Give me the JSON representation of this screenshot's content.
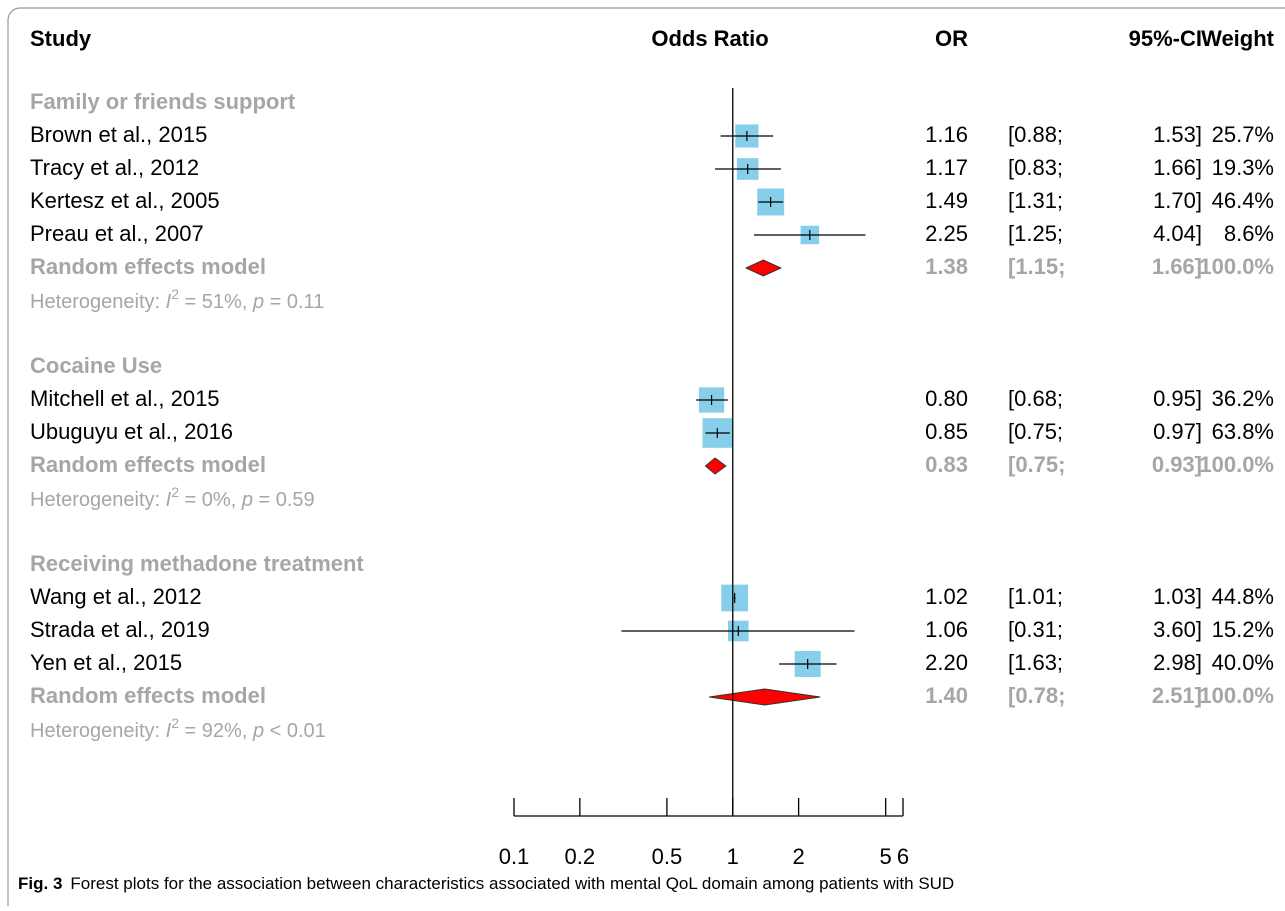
{
  "chart_data": {
    "type": "forest",
    "columns": [
      "Study",
      "Odds Ratio",
      "OR",
      "95%-CI",
      "Weight"
    ],
    "xlim": [
      0.1,
      6
    ],
    "xticks": [
      0.1,
      0.2,
      0.5,
      1,
      2,
      5,
      6
    ],
    "x_log": true,
    "reference_line": 1,
    "box_color": "#87ceeb",
    "diamond_color": "#ff0000",
    "groups": [
      {
        "name": "Family or friends support",
        "studies": [
          {
            "label": "Brown et al., 2015",
            "or": 1.16,
            "lower": 0.88,
            "upper": 1.53,
            "weight": 25.7,
            "labels": {
              "or": "1.16",
              "lower": "[0.88;",
              "upper": "1.53]",
              "weight": "25.7%"
            }
          },
          {
            "label": "Tracy et al., 2012",
            "or": 1.17,
            "lower": 0.83,
            "upper": 1.66,
            "weight": 19.3,
            "labels": {
              "or": "1.17",
              "lower": "[0.83;",
              "upper": "1.66]",
              "weight": "19.3%"
            }
          },
          {
            "label": "Kertesz et al., 2005",
            "or": 1.49,
            "lower": 1.31,
            "upper": 1.7,
            "weight": 46.4,
            "labels": {
              "or": "1.49",
              "lower": "[1.31;",
              "upper": "1.70]",
              "weight": "46.4%"
            }
          },
          {
            "label": "Preau et al., 2007",
            "or": 2.25,
            "lower": 1.25,
            "upper": 4.04,
            "weight": 8.6,
            "labels": {
              "or": "2.25",
              "lower": "[1.25;",
              "upper": "4.04]",
              "weight": "8.6%"
            }
          }
        ],
        "summary": {
          "label": "Random effects model",
          "or": 1.38,
          "lower": 1.15,
          "upper": 1.66,
          "weight": 100,
          "labels": {
            "or": "1.38",
            "lower": "[1.15;",
            "upper": "1.66]",
            "weight": "100.0%"
          }
        },
        "heterogeneity": [
          "Heterogeneity: ",
          "I",
          "2",
          " = 51%, ",
          "p",
          " = 0.11"
        ]
      },
      {
        "name": "Cocaine Use",
        "studies": [
          {
            "label": "Mitchell et al., 2015",
            "or": 0.8,
            "lower": 0.68,
            "upper": 0.95,
            "weight": 36.2,
            "labels": {
              "or": "0.80",
              "lower": "[0.68;",
              "upper": "0.95]",
              "weight": "36.2%"
            }
          },
          {
            "label": "Ubuguyu et al., 2016",
            "or": 0.85,
            "lower": 0.75,
            "upper": 0.97,
            "weight": 63.8,
            "labels": {
              "or": "0.85",
              "lower": "[0.75;",
              "upper": "0.97]",
              "weight": "63.8%"
            }
          }
        ],
        "summary": {
          "label": "Random effects model",
          "or": 0.83,
          "lower": 0.75,
          "upper": 0.93,
          "weight": 100,
          "labels": {
            "or": "0.83",
            "lower": "[0.75;",
            "upper": "0.93]",
            "weight": "100.0%"
          }
        },
        "heterogeneity": [
          "Heterogeneity: ",
          "I",
          "2",
          " = 0%, ",
          "p",
          " = 0.59"
        ]
      },
      {
        "name": "Receiving methadone treatment",
        "studies": [
          {
            "label": "Wang et al., 2012",
            "or": 1.02,
            "lower": 1.01,
            "upper": 1.03,
            "weight": 44.8,
            "labels": {
              "or": "1.02",
              "lower": "[1.01;",
              "upper": "1.03]",
              "weight": "44.8%"
            }
          },
          {
            "label": "Strada et al., 2019",
            "or": 1.06,
            "lower": 0.31,
            "upper": 3.6,
            "weight": 15.2,
            "labels": {
              "or": "1.06",
              "lower": "[0.31;",
              "upper": "3.60]",
              "weight": "15.2%"
            }
          },
          {
            "label": "Yen et al., 2015",
            "or": 2.2,
            "lower": 1.63,
            "upper": 2.98,
            "weight": 40,
            "labels": {
              "or": "2.20",
              "lower": "[1.63;",
              "upper": "2.98]",
              "weight": "40.0%"
            }
          }
        ],
        "summary": {
          "label": "Random effects model",
          "or": 1.4,
          "lower": 0.78,
          "upper": 2.51,
          "weight": 100,
          "labels": {
            "or": "1.40",
            "lower": "[0.78;",
            "upper": "2.51]",
            "weight": "100.0%"
          }
        },
        "heterogeneity": [
          "Heterogeneity: ",
          "I",
          "2",
          " = 92%, ",
          "p",
          " < 0.01"
        ]
      }
    ],
    "caption_label": "Fig. 3",
    "caption": "Forest plots for the association between characteristics associated with mental QoL domain among patients with SUD"
  }
}
